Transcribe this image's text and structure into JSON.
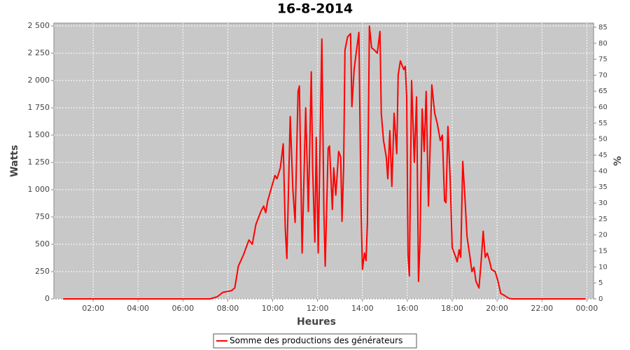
{
  "chart_data": {
    "type": "line",
    "title": "16-8-2014",
    "xlabel": "Heures",
    "ylabel": "Watts",
    "y2label": "%",
    "x": [
      0.66,
      7.2,
      7.53,
      7.78,
      8.16,
      8.31,
      8.47,
      8.69,
      8.94,
      9.09,
      9.25,
      9.47,
      9.6,
      9.69,
      9.78,
      10.1,
      10.19,
      10.34,
      10.47,
      10.56,
      10.63,
      10.78,
      10.9,
      11.0,
      11.13,
      11.19,
      11.31,
      11.47,
      11.59,
      11.72,
      11.78,
      11.88,
      11.94,
      12.03,
      12.19,
      12.28,
      12.34,
      12.47,
      12.53,
      12.66,
      12.72,
      12.81,
      12.94,
      13.03,
      13.09,
      13.16,
      13.22,
      13.34,
      13.47,
      13.53,
      13.63,
      13.72,
      13.84,
      13.94,
      14.0,
      14.09,
      14.16,
      14.22,
      14.31,
      14.41,
      14.53,
      14.66,
      14.78,
      14.84,
      14.94,
      15.06,
      15.13,
      15.22,
      15.31,
      15.41,
      15.53,
      15.59,
      15.69,
      15.84,
      15.91,
      15.97,
      16.03,
      16.09,
      16.19,
      16.31,
      16.41,
      16.5,
      16.56,
      16.66,
      16.75,
      16.84,
      16.94,
      17.09,
      17.22,
      17.34,
      17.47,
      17.56,
      17.66,
      17.72,
      17.81,
      17.91,
      18.0,
      18.16,
      18.22,
      18.31,
      18.38,
      18.47,
      18.56,
      18.66,
      18.78,
      18.88,
      18.97,
      19.06,
      19.19,
      19.28,
      19.38,
      19.47,
      19.56,
      19.66,
      19.75,
      19.91,
      20.03,
      20.16,
      20.34,
      20.53,
      20.66,
      23.94
    ],
    "series": [
      {
        "name": "Somme des productions des  générateurs",
        "color": "#ff0000",
        "values": [
          0,
          0,
          20,
          60,
          75,
          100,
          300,
          400,
          540,
          500,
          680,
          800,
          850,
          790,
          900,
          1130,
          1100,
          1200,
          1420,
          650,
          370,
          1670,
          1000,
          700,
          1900,
          1950,
          420,
          1750,
          800,
          2080,
          1200,
          520,
          1480,
          420,
          2380,
          800,
          300,
          1380,
          1400,
          820,
          1200,
          950,
          1350,
          1300,
          710,
          1200,
          2280,
          2400,
          2430,
          1760,
          2100,
          2250,
          2440,
          800,
          270,
          420,
          350,
          700,
          2500,
          2300,
          2280,
          2250,
          2450,
          1700,
          1450,
          1300,
          1100,
          1540,
          1030,
          1700,
          1330,
          2050,
          2180,
          2100,
          2130,
          1850,
          400,
          210,
          2000,
          1250,
          1850,
          160,
          500,
          1740,
          1350,
          1900,
          850,
          1960,
          1700,
          1600,
          1450,
          1500,
          900,
          880,
          1580,
          1100,
          470,
          380,
          340,
          450,
          380,
          1260,
          950,
          570,
          400,
          250,
          290,
          160,
          100,
          320,
          620,
          380,
          420,
          350,
          270,
          250,
          170,
          50,
          30,
          5,
          0,
          0
        ]
      }
    ],
    "xlim": [
      0.25,
      24.3
    ],
    "xticks": [
      {
        "value": 2,
        "label": "02:00"
      },
      {
        "value": 4,
        "label": "04:00"
      },
      {
        "value": 6,
        "label": "06:00"
      },
      {
        "value": 8,
        "label": "08:00"
      },
      {
        "value": 10,
        "label": "10:00"
      },
      {
        "value": 12,
        "label": "12:00"
      },
      {
        "value": 14,
        "label": "14:00"
      },
      {
        "value": 16,
        "label": "16:00"
      },
      {
        "value": 18,
        "label": "18:00"
      },
      {
        "value": 20,
        "label": "20:00"
      },
      {
        "value": 22,
        "label": "22:00"
      },
      {
        "value": 24,
        "label": "00:00"
      }
    ],
    "ylim": [
      0,
      2526
    ],
    "yticks": [
      0,
      250,
      500,
      750,
      {
        "value": 1000,
        "label": "1 000"
      },
      {
        "value": 1250,
        "label": "1 250"
      },
      {
        "value": 1500,
        "label": "1 500"
      },
      {
        "value": 1750,
        "label": "1 750"
      },
      {
        "value": 2000,
        "label": "2 000"
      },
      {
        "value": 2250,
        "label": "2 250"
      },
      {
        "value": 2500,
        "label": "2 500"
      }
    ],
    "y2lim": [
      0,
      86.3
    ],
    "y2ticks": [
      0,
      5,
      10,
      15,
      20,
      25,
      30,
      35,
      40,
      45,
      50,
      55,
      60,
      65,
      70,
      75,
      80,
      85
    ],
    "grid": true
  }
}
